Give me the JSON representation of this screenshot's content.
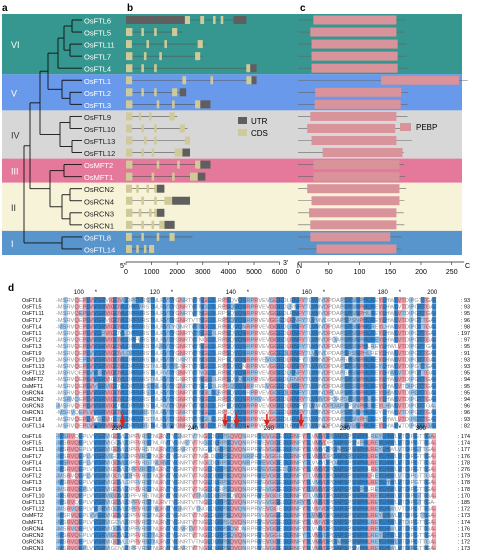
{
  "panels": {
    "a": "a",
    "b": "b",
    "c": "c",
    "d": "d"
  },
  "clades": [
    {
      "name": "VI",
      "color": "#12857b",
      "genes": [
        "OsFTL6",
        "OsFTL5",
        "OsFTL11",
        "OsFTL7",
        "OsFTL4"
      ]
    },
    {
      "name": "V",
      "color": "#4f87e8",
      "genes": [
        "OsFTL1",
        "OsFTL2",
        "OsFTL3"
      ]
    },
    {
      "name": "IV",
      "color": "#d3d3d3",
      "genes": [
        "OsFTL9",
        "OsFTL10",
        "OsFTL13",
        "OsFTL12"
      ]
    },
    {
      "name": "III",
      "color": "#e0628a",
      "genes": [
        "OsMFT2",
        "OsMFT1"
      ]
    },
    {
      "name": "II",
      "color": "#f6f2d4",
      "genes": [
        "OsRCN2",
        "OsRCN4",
        "OsRCN3",
        "OsRCN1"
      ]
    },
    {
      "name": "I",
      "color": "#3b82c4",
      "genes": [
        "OsFTL8",
        "OsFTL14"
      ]
    }
  ],
  "gene_structure": {
    "legend": [
      "UTR",
      "CDS"
    ],
    "utr_color": "#5f5f5f",
    "cds_color": "#cfca97",
    "axis_ticks": [
      "0",
      "1000",
      "2000",
      "3000",
      "4000",
      "5000",
      "6000"
    ],
    "left_end": "5'",
    "right_end": "3'"
  },
  "protein": {
    "legend": [
      "PEBP"
    ],
    "pebp_color": "#d9939a",
    "axis_ticks": [
      "0",
      "50",
      "100",
      "150",
      "200",
      "250"
    ],
    "left_end": "N",
    "right_end": "C"
  },
  "alignment": {
    "block1": {
      "ruler": [
        "100",
        "120",
        "140",
        "160",
        "180",
        "200"
      ],
      "names": [
        "OsFTL6",
        "OsFTL5",
        "OsFTL11",
        "OsFTL7",
        "OsFTL4",
        "OsFTL1",
        "OsFTL2",
        "OsFTL3",
        "OsFTL9",
        "OsFTL10",
        "OsFTL13",
        "OsFTL12",
        "OsMFT2",
        "OsMFT1",
        "OsRCN4",
        "OsRCN2",
        "OsRCN3",
        "OsRCN1",
        "OsFTL8",
        "OsFTL14"
      ],
      "ends": [
        "93",
        "93",
        "95",
        "96",
        "98",
        "197",
        "97",
        "95",
        "91",
        "93",
        "93",
        "95",
        "94",
        "95",
        "95",
        "94",
        "96",
        "96",
        "93",
        "82"
      ]
    },
    "block2": {
      "ruler": [
        "220",
        "240",
        "260",
        "280",
        "300"
      ],
      "names": [
        "OsFTL6",
        "OsFTL5",
        "OsFTL11",
        "OsFTL7",
        "OsFTL4",
        "OsFTL1",
        "OsFTL2",
        "OsFTL3",
        "OsFTL9",
        "OsFTL10",
        "OsFTL13",
        "OsFTL12",
        "OsMFT2",
        "OsMFT1",
        "OsRCN4",
        "OsRCN2",
        "OsRCN3",
        "OsRCN1",
        "OsFTL8",
        "OsFTL14"
      ],
      "ends": [
        "174",
        "174",
        "177",
        "176",
        "178",
        "276",
        "179",
        "178",
        "178",
        "170",
        "185",
        "172",
        "173",
        "174",
        "176",
        "173",
        "172",
        "173",
        "169",
        "167"
      ]
    }
  }
}
